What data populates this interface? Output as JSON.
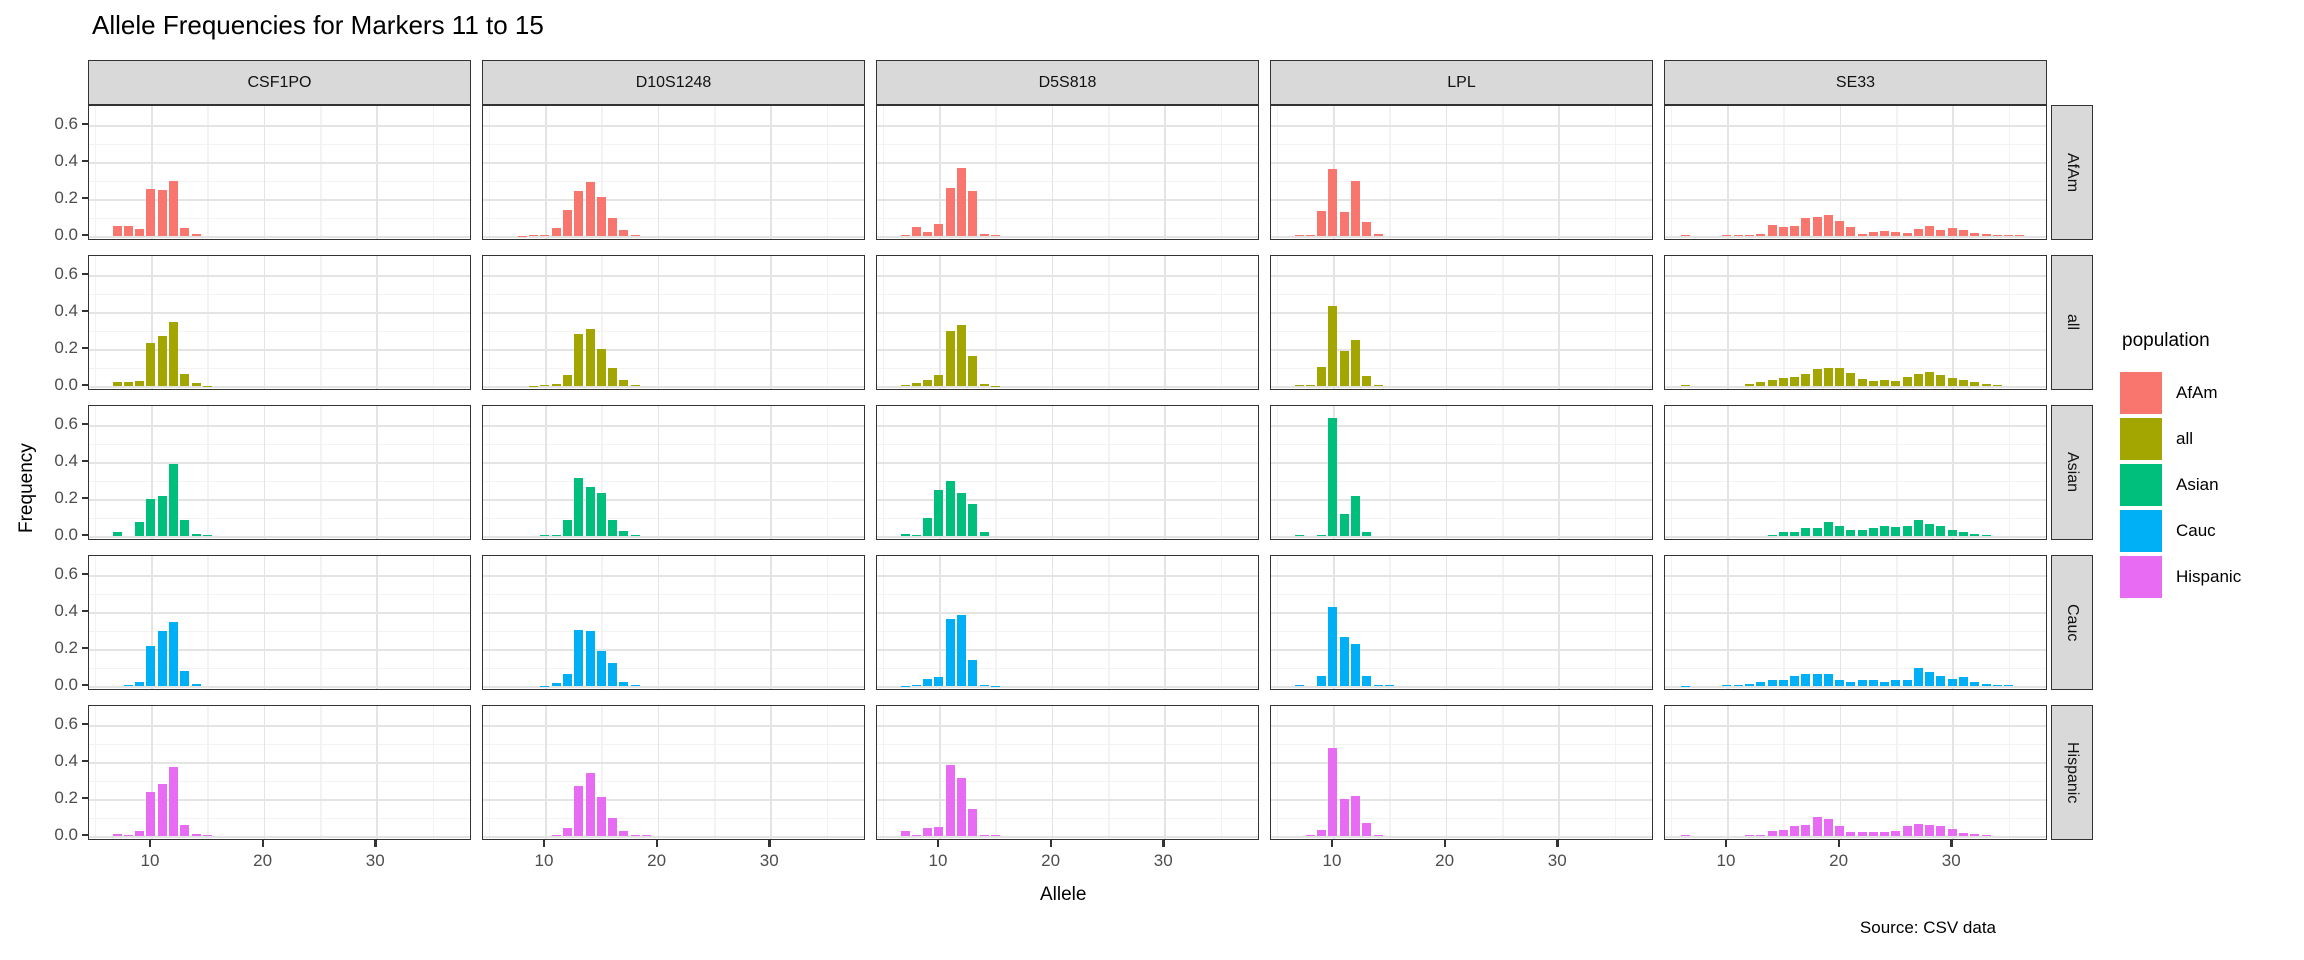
{
  "chart_data": {
    "type": "bar",
    "title": "Allele Frequencies for Markers 11 to 15",
    "xlabel": "Allele",
    "ylabel": "Frequency",
    "caption": "Source: CSV data",
    "facet_columns": [
      "CSF1PO",
      "D10S1248",
      "D5S818",
      "LPL",
      "SE33"
    ],
    "facet_rows": [
      "AfAm",
      "all",
      "Asian",
      "Cauc",
      "Hispanic"
    ],
    "x_ticks": [
      10,
      20,
      30
    ],
    "y_ticks": [
      "0.0",
      "0.2",
      "0.4",
      "0.6"
    ],
    "y_minor": [
      0.1,
      0.3,
      0.5
    ],
    "x_minor": [
      5,
      15,
      25,
      35
    ],
    "xlim": [
      4.5,
      38.5
    ],
    "ylim": [
      0,
      0.66
    ],
    "grid": true,
    "legend": {
      "title": "population",
      "position": "right",
      "entries": [
        {
          "label": "AfAm",
          "color": "#F8766D"
        },
        {
          "label": "all",
          "color": "#A3A500"
        },
        {
          "label": "Asian",
          "color": "#00BF7D"
        },
        {
          "label": "Cauc",
          "color": "#00B0F6"
        },
        {
          "label": "Hispanic",
          "color": "#E76BF3"
        }
      ]
    },
    "frequencies": {
      "CSF1PO": {
        "AfAm": {
          "7": 0.055,
          "8": 0.055,
          "9": 0.04,
          "10": 0.255,
          "11": 0.25,
          "12": 0.3,
          "13": 0.045,
          "14": 0.01
        },
        "all": {
          "7": 0.02,
          "8": 0.022,
          "9": 0.028,
          "10": 0.235,
          "11": 0.27,
          "12": 0.345,
          "13": 0.065,
          "14": 0.015,
          "15": 0.002
        },
        "Asian": {
          "7": 0.022,
          "9": 0.075,
          "10": 0.2,
          "11": 0.215,
          "12": 0.39,
          "13": 0.085,
          "14": 0.012,
          "15": 0.003
        },
        "Cauc": {
          "8": 0.008,
          "9": 0.02,
          "10": 0.215,
          "11": 0.3,
          "12": 0.345,
          "13": 0.08,
          "14": 0.012
        },
        "Hispanic": {
          "7": 0.012,
          "8": 0.008,
          "9": 0.026,
          "10": 0.24,
          "11": 0.28,
          "12": 0.375,
          "13": 0.06,
          "14": 0.012,
          "15": 0.004
        }
      },
      "D10S1248": {
        "AfAm": {
          "8": 0.002,
          "9": 0.003,
          "10": 0.004,
          "11": 0.045,
          "12": 0.14,
          "13": 0.245,
          "14": 0.29,
          "15": 0.21,
          "16": 0.095,
          "17": 0.03,
          "18": 0.006
        },
        "all": {
          "9": 0.002,
          "10": 0.004,
          "11": 0.012,
          "12": 0.06,
          "13": 0.28,
          "14": 0.31,
          "15": 0.2,
          "16": 0.1,
          "17": 0.03,
          "18": 0.006
        },
        "Asian": {
          "10": 0.003,
          "11": 0.005,
          "12": 0.085,
          "13": 0.315,
          "14": 0.265,
          "15": 0.235,
          "16": 0.085,
          "17": 0.025,
          "18": 0.004
        },
        "Cauc": {
          "10": 0.002,
          "11": 0.015,
          "12": 0.065,
          "13": 0.305,
          "14": 0.295,
          "15": 0.19,
          "16": 0.125,
          "17": 0.022,
          "18": 0.004
        },
        "Hispanic": {
          "11": 0.005,
          "12": 0.045,
          "13": 0.27,
          "14": 0.34,
          "15": 0.21,
          "16": 0.1,
          "17": 0.025,
          "18": 0.006,
          "19": 0.003
        }
      },
      "D5S818": {
        "AfAm": {
          "7": 0.005,
          "8": 0.05,
          "9": 0.02,
          "10": 0.065,
          "11": 0.26,
          "12": 0.365,
          "13": 0.245,
          "14": 0.012,
          "15": 0.003
        },
        "all": {
          "7": 0.008,
          "8": 0.018,
          "9": 0.035,
          "10": 0.06,
          "11": 0.3,
          "12": 0.33,
          "13": 0.16,
          "14": 0.013,
          "15": 0.002
        },
        "Asian": {
          "7": 0.01,
          "8": 0.003,
          "9": 0.095,
          "10": 0.25,
          "11": 0.295,
          "12": 0.23,
          "13": 0.175,
          "14": 0.02
        },
        "Cauc": {
          "7": 0.002,
          "8": 0.003,
          "9": 0.04,
          "10": 0.05,
          "11": 0.36,
          "12": 0.385,
          "13": 0.14,
          "14": 0.007,
          "15": 0.002
        },
        "Hispanic": {
          "7": 0.028,
          "8": 0.006,
          "9": 0.045,
          "10": 0.048,
          "11": 0.385,
          "12": 0.315,
          "13": 0.145,
          "14": 0.008,
          "15": 0.003
        }
      },
      "LPL": {
        "AfAm": {
          "7": 0.008,
          "8": 0.004,
          "9": 0.135,
          "10": 0.36,
          "11": 0.13,
          "12": 0.3,
          "13": 0.075,
          "14": 0.012
        },
        "all": {
          "7": 0.008,
          "8": 0.005,
          "9": 0.105,
          "10": 0.43,
          "11": 0.19,
          "12": 0.25,
          "13": 0.055,
          "14": 0.008
        },
        "Asian": {
          "7": 0.004,
          "9": 0.006,
          "10": 0.64,
          "11": 0.12,
          "12": 0.215,
          "13": 0.022
        },
        "Cauc": {
          "7": 0.003,
          "9": 0.055,
          "10": 0.425,
          "11": 0.265,
          "12": 0.225,
          "13": 0.055,
          "14": 0.005,
          "15": 0.003
        },
        "Hispanic": {
          "8": 0.004,
          "9": 0.035,
          "10": 0.475,
          "11": 0.2,
          "12": 0.215,
          "13": 0.07,
          "14": 0.007
        }
      },
      "SE33": {
        "AfAm": {
          "6.3": 0.003,
          "10": 0.003,
          "11": 0.004,
          "12": 0.005,
          "13": 0.012,
          "14": 0.06,
          "15": 0.05,
          "16": 0.055,
          "17": 0.095,
          "18": 0.105,
          "19": 0.115,
          "20": 0.08,
          "21": 0.05,
          "22": 0.012,
          "23": 0.02,
          "24": 0.025,
          "25": 0.02,
          "26": 0.015,
          "27": 0.04,
          "28": 0.055,
          "29": 0.035,
          "30": 0.045,
          "31": 0.035,
          "32": 0.018,
          "33": 0.012,
          "34": 0.008,
          "35": 0.004,
          "36": 0.003
        },
        "all": {
          "6.3": 0.004,
          "12": 0.012,
          "13": 0.02,
          "14": 0.035,
          "15": 0.045,
          "16": 0.05,
          "17": 0.065,
          "18": 0.09,
          "19": 0.1,
          "20": 0.095,
          "21": 0.07,
          "22": 0.04,
          "23": 0.025,
          "24": 0.03,
          "25": 0.028,
          "26": 0.05,
          "27": 0.065,
          "28": 0.075,
          "29": 0.06,
          "30": 0.045,
          "31": 0.03,
          "32": 0.02,
          "33": 0.012,
          "34": 0.006
        },
        "Asian": {
          "14": 0.005,
          "15": 0.022,
          "16": 0.022,
          "17": 0.045,
          "18": 0.045,
          "19": 0.075,
          "20": 0.055,
          "21": 0.035,
          "22": 0.035,
          "23": 0.045,
          "24": 0.055,
          "25": 0.05,
          "26": 0.055,
          "27": 0.085,
          "28": 0.065,
          "29": 0.055,
          "30": 0.035,
          "31": 0.022,
          "32": 0.012,
          "33": 0.004
        },
        "Cauc": {
          "6.3": 0.002,
          "10": 0.003,
          "11": 0.005,
          "12": 0.012,
          "13": 0.022,
          "14": 0.035,
          "15": 0.035,
          "16": 0.055,
          "17": 0.065,
          "18": 0.065,
          "19": 0.065,
          "20": 0.035,
          "21": 0.022,
          "22": 0.03,
          "23": 0.035,
          "24": 0.02,
          "25": 0.03,
          "26": 0.03,
          "27": 0.1,
          "28": 0.075,
          "29": 0.055,
          "30": 0.04,
          "31": 0.05,
          "32": 0.02,
          "33": 0.012,
          "34": 0.005,
          "35": 0.008
        },
        "Hispanic": {
          "6.3": 0.004,
          "12": 0.004,
          "13": 0.007,
          "14": 0.025,
          "15": 0.03,
          "16": 0.055,
          "17": 0.06,
          "18": 0.105,
          "19": 0.09,
          "20": 0.055,
          "21": 0.022,
          "22": 0.02,
          "23": 0.02,
          "24": 0.022,
          "25": 0.025,
          "26": 0.055,
          "27": 0.065,
          "28": 0.06,
          "29": 0.055,
          "30": 0.04,
          "31": 0.015,
          "32": 0.012,
          "33": 0.005
        }
      }
    }
  }
}
